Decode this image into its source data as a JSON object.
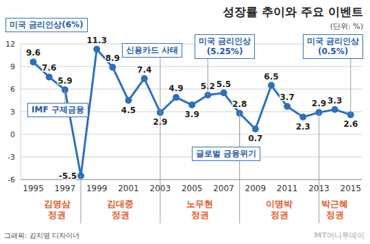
{
  "chart_data": {
    "type": "line",
    "title": "성장률 추이와 주요 이벤트",
    "subtitle": "(단위: %)",
    "x": [
      1995,
      1996,
      1997,
      1998,
      1999,
      2000,
      2001,
      2002,
      2003,
      2004,
      2005,
      2006,
      2007,
      2008,
      2009,
      2010,
      2011,
      2012,
      2013,
      2014,
      2015
    ],
    "values": [
      9.6,
      7.6,
      5.9,
      -5.5,
      11.3,
      8.9,
      4.5,
      7.4,
      2.9,
      4.9,
      3.9,
      5.2,
      5.5,
      2.8,
      0.7,
      6.5,
      3.7,
      2.3,
      2.9,
      3.3,
      2.6
    ],
    "color": "#2e6fba",
    "marker": "circle",
    "xlim": [
      1994.2,
      2015.7
    ],
    "xticks": [
      1995,
      1997,
      1999,
      2001,
      2003,
      2005,
      2007,
      2009,
      2011,
      2013,
      2015
    ],
    "ylim": [
      -6,
      12
    ],
    "yticks": [
      -6,
      -3,
      0,
      3,
      6,
      9,
      12
    ],
    "grid": true,
    "data_labels": true,
    "annotations": [
      {
        "lines": [
          "미국 금리인상(6%)"
        ],
        "x": 1995
      },
      {
        "lines": [
          "IMF 구제금융"
        ],
        "x": 1997
      },
      {
        "lines": [
          "신용카드 사태"
        ],
        "x": 2003
      },
      {
        "lines": [
          "미국 금리인상",
          "(5.25%)"
        ],
        "x": 2006
      },
      {
        "lines": [
          "글로벌 금융위기"
        ],
        "x": 2008
      },
      {
        "lines": [
          "미국 금리인상",
          "(0.5%)"
        ],
        "x": 2015
      }
    ],
    "eras": [
      {
        "lines": [
          "김영삼",
          "정권"
        ],
        "start": 1995,
        "end": 1998
      },
      {
        "lines": [
          "김대중",
          "정권"
        ],
        "start": 1998,
        "end": 2003
      },
      {
        "lines": [
          "노무현",
          "정권"
        ],
        "start": 2003,
        "end": 2008
      },
      {
        "lines": [
          "이명박",
          "정권"
        ],
        "start": 2008,
        "end": 2013
      },
      {
        "lines": [
          "박근혜",
          "정권"
        ],
        "start": 2013,
        "end": 2015
      }
    ],
    "credit": "그래픽: 김지영 디자이너",
    "watermark": "MT머니투데이"
  }
}
